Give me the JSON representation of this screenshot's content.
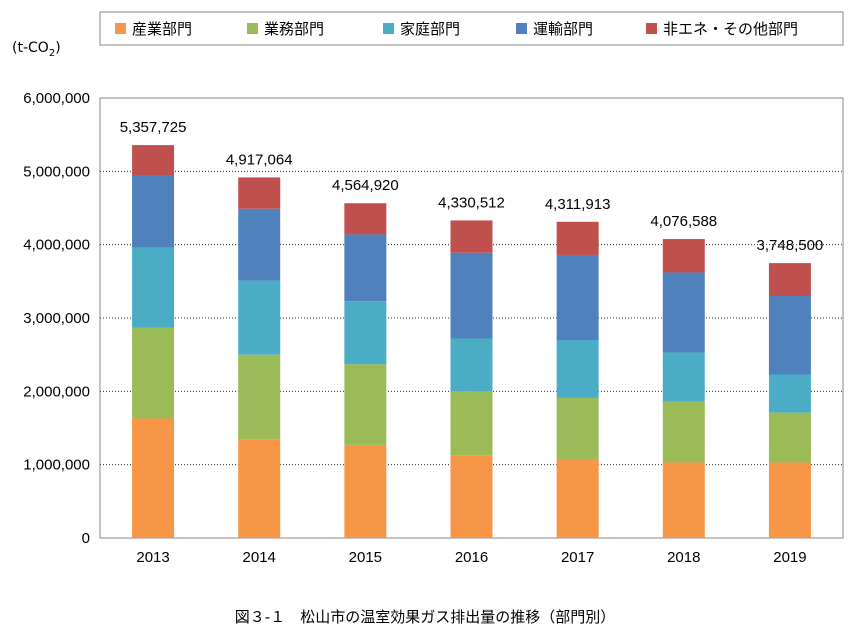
{
  "caption": "図３-１　松山市の温室効果ガス排出量の推移（部門別）",
  "chart_data": {
    "type": "bar",
    "stacked": true,
    "ylabel_prefix": "(t-CO",
    "ylabel_sub": "2",
    "ylabel_suffix": ")",
    "ylim": [
      0,
      6000000
    ],
    "ytick_values": [
      0,
      1000000,
      2000000,
      3000000,
      4000000,
      5000000,
      6000000
    ],
    "ytick_labels": [
      "0",
      "1,000,000",
      "2,000,000",
      "3,000,000",
      "4,000,000",
      "5,000,000",
      "6,000,000"
    ],
    "grid": true,
    "legend_position": "top",
    "categories": [
      "2013",
      "2014",
      "2015",
      "2016",
      "2017",
      "2018",
      "2019"
    ],
    "totals": [
      5357725,
      4917064,
      4564920,
      4330512,
      4311913,
      4076588,
      3748500
    ],
    "total_labels": [
      "5,357,725",
      "4,917,064",
      "4,564,920",
      "4,330,512",
      "4,311,913",
      "4,076,588",
      "3,748,500"
    ],
    "series": [
      {
        "name": "産業部門",
        "color": "#F79646",
        "values": [
          1630000,
          1340000,
          1270000,
          1130000,
          1070000,
          1030000,
          1030000
        ]
      },
      {
        "name": "業務部門",
        "color": "#9BBB59",
        "values": [
          1240000,
          1160000,
          1100000,
          870000,
          840000,
          830000,
          680000
        ]
      },
      {
        "name": "家庭部門",
        "color": "#4BACC6",
        "values": [
          1090000,
          1010000,
          860000,
          720000,
          790000,
          670000,
          520000
        ]
      },
      {
        "name": "運輸部門",
        "color": "#4F81BD",
        "values": [
          990000,
          980000,
          910000,
          1170000,
          1160000,
          1090000,
          1070000
        ]
      },
      {
        "name": "非エネ・その他部門",
        "color": "#C0504D",
        "values": [
          407725,
          427064,
          424920,
          440512,
          451913,
          456588,
          448500
        ]
      }
    ]
  }
}
